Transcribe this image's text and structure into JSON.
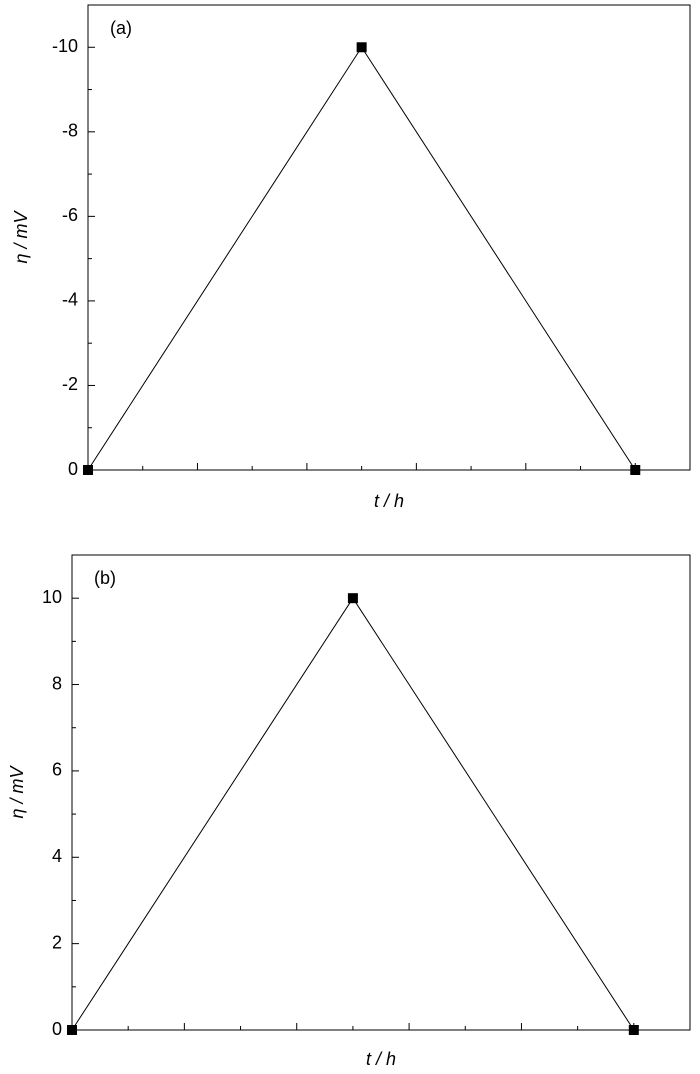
{
  "chart_data": [
    {
      "type": "line",
      "annotation": "(a)",
      "x_label": "t / h",
      "y_label": "η / mV",
      "x": [
        0,
        2.5,
        5
      ],
      "values": [
        0,
        -10,
        0
      ],
      "color": "#000000",
      "xlim": [
        0,
        5.5
      ],
      "xticks": [
        0,
        1,
        2,
        3,
        4,
        5
      ],
      "x_tick_labels": false,
      "ylim": [
        0,
        -11
      ],
      "yticks": [
        0,
        -2,
        -4,
        -6,
        -8,
        -10
      ]
    },
    {
      "type": "line",
      "annotation": "(b)",
      "x_label": "t / h",
      "y_label": "η / mV",
      "x": [
        0,
        2.5,
        5
      ],
      "values": [
        0,
        10,
        0
      ],
      "color": "#000000",
      "xlim": [
        0,
        5.5
      ],
      "xticks": [
        0,
        1,
        2,
        3,
        4,
        5
      ],
      "x_tick_labels": false,
      "ylim": [
        0,
        11
      ],
      "yticks": [
        0,
        2,
        4,
        6,
        8,
        10
      ]
    }
  ]
}
